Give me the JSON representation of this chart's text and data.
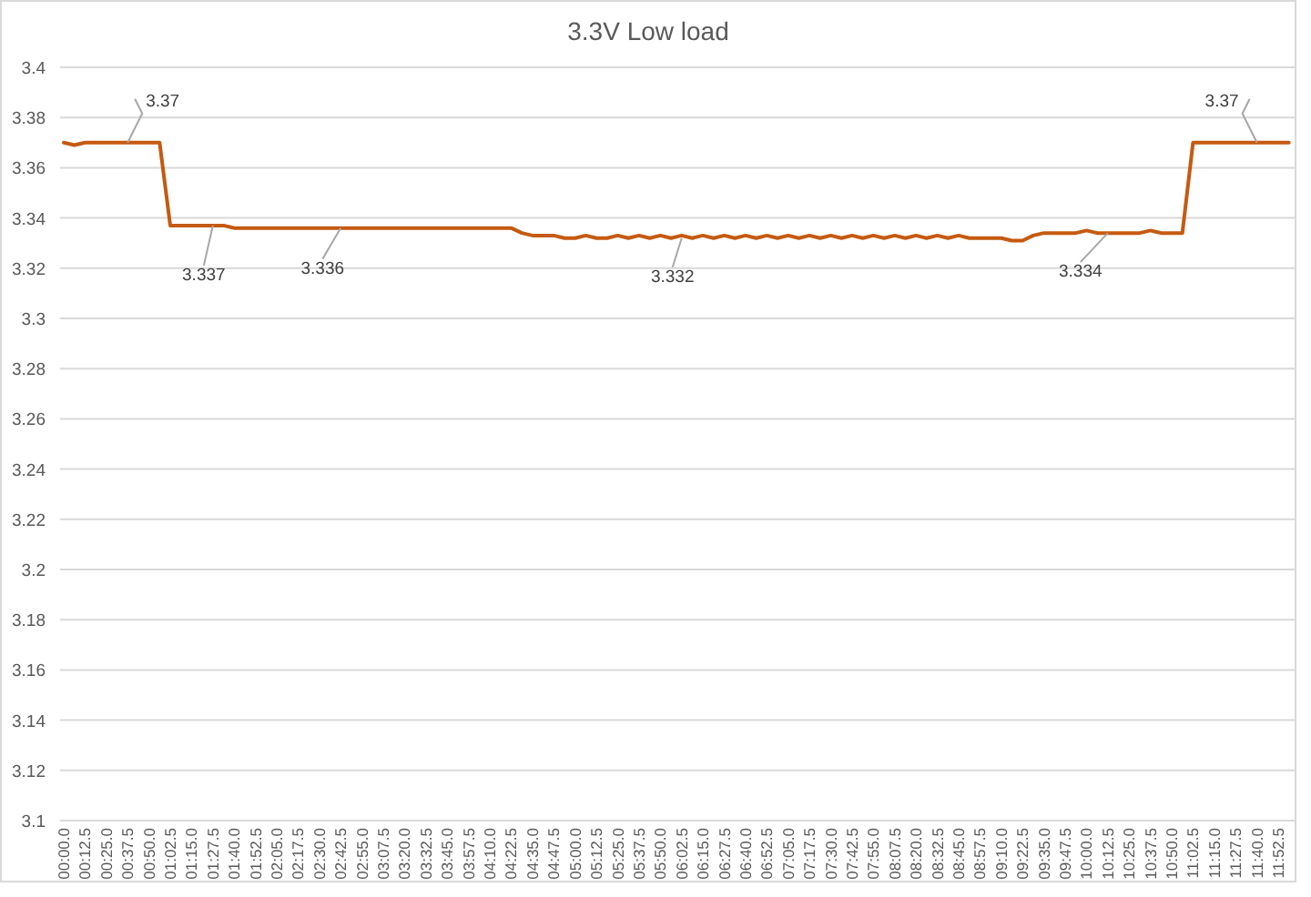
{
  "chart_data": {
    "type": "line",
    "title": "3.3V Low load",
    "categories": [
      "00:00.0",
      null,
      "00:12.5",
      null,
      "00:25.0",
      null,
      "00:37.5",
      null,
      "00:50.0",
      null,
      "01:02.5",
      null,
      "01:15.0",
      null,
      "01:27.5",
      null,
      "01:40.0",
      null,
      "01:52.5",
      null,
      "02:05.0",
      null,
      "02:17.5",
      null,
      "02:30.0",
      null,
      "02:42.5",
      null,
      "02:55.0",
      null,
      "03:07.5",
      null,
      "03:20.0",
      null,
      "03:32.5",
      null,
      "03:45.0",
      null,
      "03:57.5",
      null,
      "04:10.0",
      null,
      "04:22.5",
      null,
      "04:35.0",
      null,
      "04:47.5",
      null,
      "05:00.0",
      null,
      "05:12.5",
      null,
      "05:25.0",
      null,
      "05:37.5",
      null,
      "05:50.0",
      null,
      "06:02.5",
      null,
      "06:15.0",
      null,
      "06:27.5",
      null,
      "06:40.0",
      null,
      "06:52.5",
      null,
      "07:05.0",
      null,
      "07:17.5",
      null,
      "07:30.0",
      null,
      "07:42.5",
      null,
      "07:55.0",
      null,
      "08:07.5",
      null,
      "08:20.0",
      null,
      "08:32.5",
      null,
      "08:45.0",
      null,
      "08:57.5",
      null,
      "09:10.0",
      null,
      "09:22.5",
      null,
      "09:35.0",
      null,
      "09:47.5",
      null,
      "10:00.0",
      null,
      "10:12.5",
      null,
      "10:25.0",
      null,
      "10:37.5",
      null,
      "10:50.0",
      null,
      "11:02.5",
      null,
      "11:15.0",
      null,
      "11:27.5",
      null,
      "11:40.0",
      null,
      "11:52.5",
      null
    ],
    "series": [
      {
        "color": "#c55a11",
        "values": [
          3.37,
          3.369,
          3.37,
          3.37,
          3.37,
          3.37,
          3.37,
          3.37,
          3.37,
          3.37,
          3.337,
          3.337,
          3.337,
          3.337,
          3.337,
          3.337,
          3.336,
          3.336,
          3.336,
          3.336,
          3.336,
          3.336,
          3.336,
          3.336,
          3.336,
          3.336,
          3.336,
          3.336,
          3.336,
          3.336,
          3.336,
          3.336,
          3.336,
          3.336,
          3.336,
          3.336,
          3.336,
          3.336,
          3.336,
          3.336,
          3.336,
          3.336,
          3.336,
          3.334,
          3.333,
          3.333,
          3.333,
          3.332,
          3.332,
          3.333,
          3.332,
          3.332,
          3.333,
          3.332,
          3.333,
          3.332,
          3.333,
          3.332,
          3.333,
          3.332,
          3.333,
          3.332,
          3.333,
          3.332,
          3.333,
          3.332,
          3.333,
          3.332,
          3.333,
          3.332,
          3.333,
          3.332,
          3.333,
          3.332,
          3.333,
          3.332,
          3.333,
          3.332,
          3.333,
          3.332,
          3.333,
          3.332,
          3.333,
          3.332,
          3.333,
          3.332,
          3.332,
          3.332,
          3.332,
          3.331,
          3.331,
          3.333,
          3.334,
          3.334,
          3.334,
          3.334,
          3.335,
          3.334,
          3.334,
          3.334,
          3.334,
          3.334,
          3.335,
          3.334,
          3.334,
          3.334,
          3.37,
          3.37,
          3.37,
          3.37,
          3.37,
          3.37,
          3.37,
          3.37,
          3.37,
          3.37
        ]
      }
    ],
    "ylim": [
      3.1,
      3.4
    ],
    "yticks": [
      3.1,
      3.12,
      3.14,
      3.16,
      3.18,
      3.2,
      3.22,
      3.24,
      3.26,
      3.28,
      3.3,
      3.32,
      3.34,
      3.36,
      3.38,
      3.4
    ],
    "grid": "y",
    "marker": "none",
    "line_style": "solid",
    "annotations": [
      {
        "text": "3.37",
        "x": "00:37.5",
        "y": 3.37
      },
      {
        "text": "3.337",
        "x": "01:27.5",
        "y": 3.337
      },
      {
        "text": "3.336",
        "x": "02:42.5",
        "y": 3.336
      },
      {
        "text": "3.332",
        "x": "06:02.5",
        "y": 3.332
      },
      {
        "text": "3.334",
        "x": "10:12.5",
        "y": 3.334
      },
      {
        "text": "3.37",
        "x": "11:40.0",
        "y": 3.37
      }
    ]
  }
}
